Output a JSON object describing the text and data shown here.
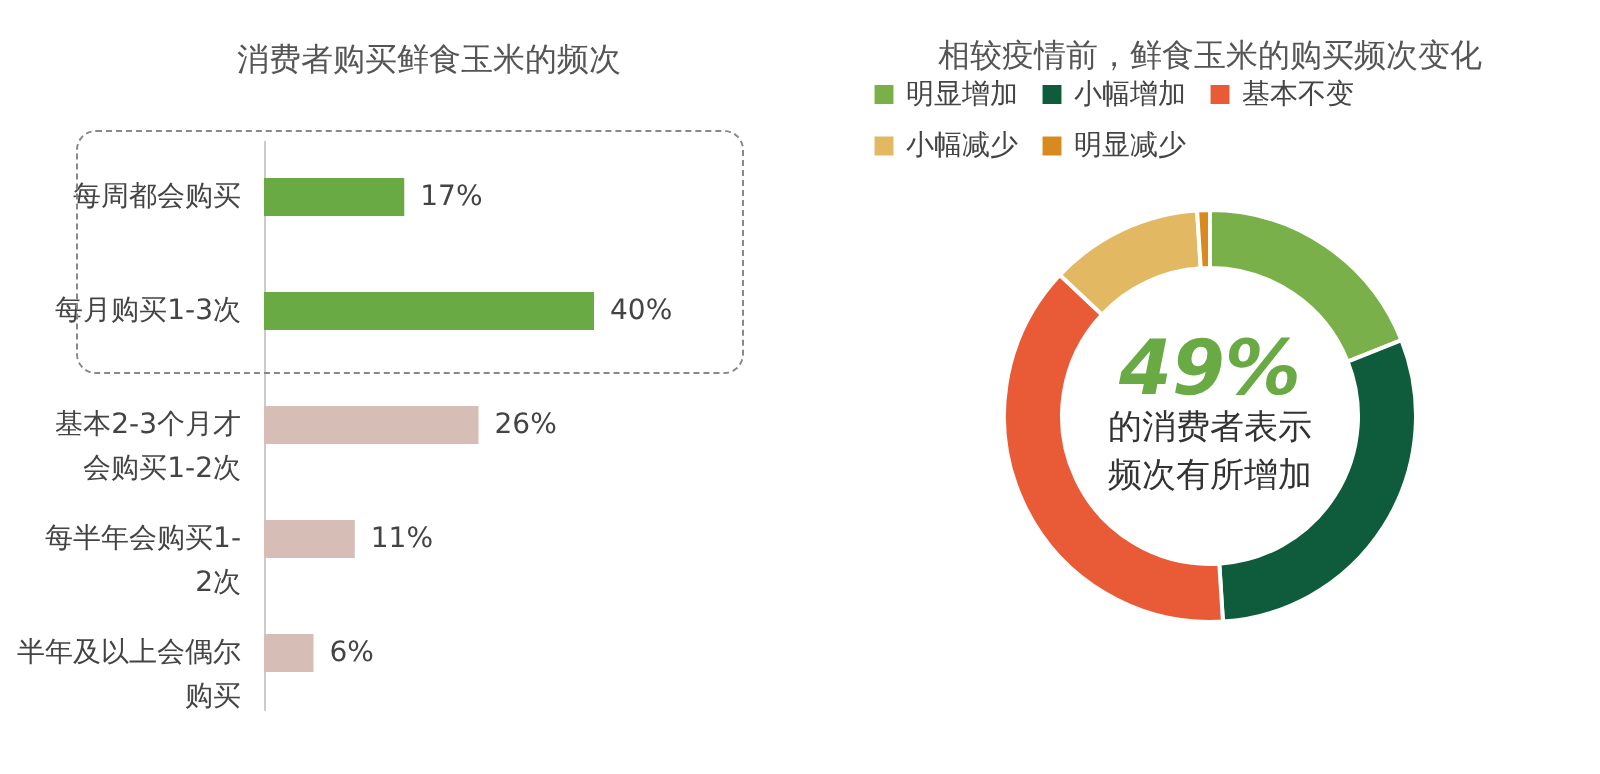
{
  "chart_data": [
    {
      "type": "bar",
      "orientation": "horizontal",
      "title": "消费者购买鲜食玉米的频次",
      "categories": [
        "每周都会购买",
        "每月购买1-3次",
        "基本2-3个月才会购买1-2次",
        "每半年会购买1-2次",
        "半年及以上会偶尔购买"
      ],
      "values": [
        17,
        40,
        26,
        11,
        6
      ],
      "colors": [
        "#6aaa45",
        "#6aaa45",
        "#d6bdb6",
        "#d6bdb6",
        "#d6bdb6"
      ],
      "value_labels": [
        "17%",
        "40%",
        "26%",
        "11%",
        "6%"
      ]
    },
    {
      "type": "donut",
      "title": "相较疫情前，鲜食玉米的购买频次变化",
      "categories": [
        "明显增加",
        "小幅增加",
        "基本不变",
        "小幅减少",
        "明显减少"
      ],
      "values": [
        19,
        30,
        38,
        12,
        1
      ],
      "colors": [
        "#79b04a",
        "#0f5c3c",
        "#e85b36",
        "#e3b862",
        "#d98a1e"
      ],
      "legend": "top",
      "annotations": [
        "49%",
        "的消费者表示",
        "频次有所增加"
      ]
    }
  ]
}
